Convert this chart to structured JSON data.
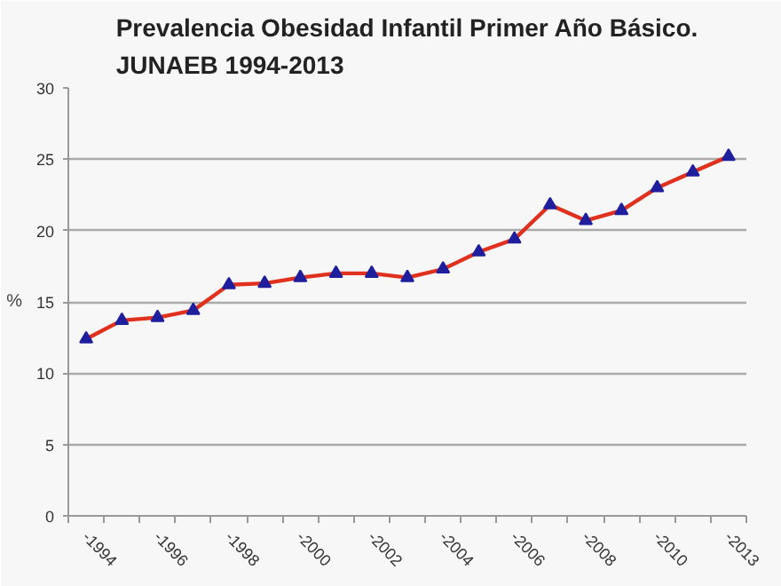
{
  "chart_data": {
    "type": "line",
    "title": "Prevalencia Obesidad Infantil Primer Año Básico.\nJUNAEB 1994-2013",
    "ylabel": "%",
    "categories": [
      "-1994",
      null,
      "-1996",
      null,
      "-1998",
      null,
      "-2000",
      null,
      "-2002",
      null,
      "-2004",
      null,
      "-2006",
      null,
      "-2008",
      null,
      "-2010",
      null,
      "-2013"
    ],
    "series": [
      {
        "color": "#e0301e",
        "values": [
          12.4,
          13.7,
          13.9,
          14.4,
          16.2,
          16.3,
          16.7,
          17.0,
          17.0,
          16.7,
          17.3,
          18.5,
          19.4,
          21.8,
          20.7,
          21.4,
          23.0,
          24.1,
          25.2
        ]
      }
    ],
    "ylim": [
      0,
      30
    ],
    "yticks": [
      0,
      5,
      10,
      15,
      20,
      25,
      30
    ],
    "grid": "y",
    "marker": "triangle",
    "line_style": "solid"
  }
}
